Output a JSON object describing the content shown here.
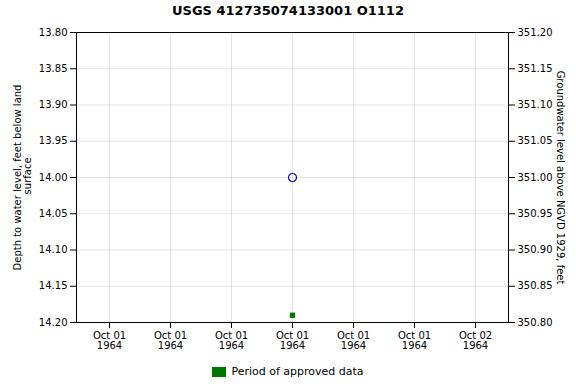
{
  "chart_data": {
    "type": "scatter",
    "title": "USGS 412735074133001 O1112",
    "ylabel": "Depth to water level, feet below land\n surface",
    "y2label": "Groundwater level above NGVD 1929, feet",
    "categories": [
      "Oct 01\n1964",
      "Oct 01\n1964",
      "Oct 01\n1964",
      "Oct 01\n1964",
      "Oct 01\n1964",
      "Oct 01\n1964",
      "Oct 02\n1964"
    ],
    "series": [
      {
        "color": "#0000cc",
        "marker": "circle",
        "values": [
          null,
          null,
          null,
          14.0,
          null,
          null,
          null
        ]
      },
      {
        "name": "Period of approved data",
        "color": "#007700",
        "marker": "square",
        "values": [
          null,
          null,
          null,
          14.19,
          null,
          null,
          null
        ]
      }
    ],
    "ylim": [
      14.2,
      13.8
    ],
    "yticks": [
      {
        "value": 13.8,
        "label": "13.80"
      },
      13.85,
      {
        "value": 13.9,
        "label": "13.90"
      },
      13.95,
      {
        "value": 14.0,
        "label": "14.00"
      },
      14.05,
      {
        "value": 14.1,
        "label": "14.10"
      },
      14.15,
      {
        "value": 14.2,
        "label": "14.20"
      }
    ],
    "y2lim": [
      350.8,
      351.2
    ],
    "y2ticks": [
      {
        "value": 351.2,
        "label": "351.20"
      },
      351.15,
      {
        "value": 351.1,
        "label": "351.10"
      },
      351.05,
      {
        "value": 351.0,
        "label": "351.00"
      },
      350.95,
      {
        "value": 350.9,
        "label": "350.90"
      },
      350.85,
      {
        "value": 350.8,
        "label": "350.80"
      }
    ],
    "grid": true,
    "legend": "bottom"
  }
}
